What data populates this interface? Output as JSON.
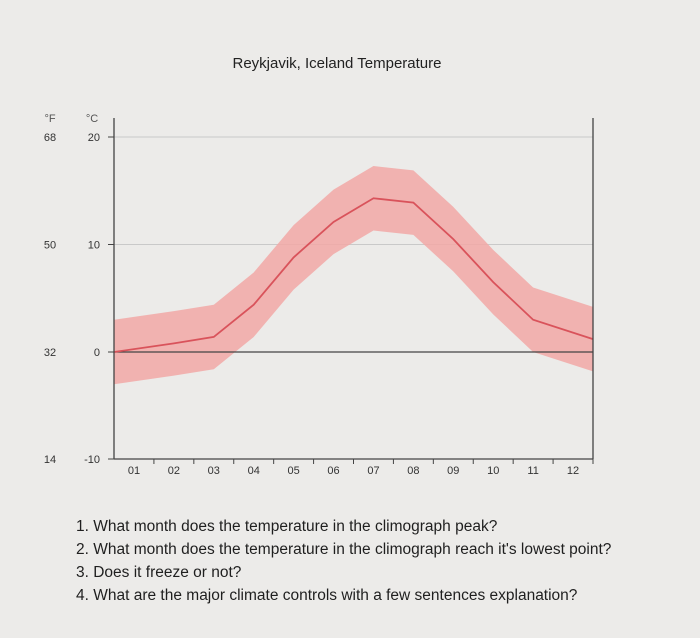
{
  "chart_data": {
    "type": "area",
    "title": "Reykjavik, Iceland Temperature",
    "y_units": {
      "fahrenheit": "°F",
      "celsius": "°C"
    },
    "y_ticks_celsius": [
      "20",
      "10",
      "0",
      "-10"
    ],
    "y_ticks_fahrenheit": [
      "68",
      "50",
      "32",
      "14"
    ],
    "ylim": [
      -10,
      21
    ],
    "categories": [
      "01",
      "02",
      "03",
      "04",
      "05",
      "06",
      "07",
      "08",
      "09",
      "10",
      "11",
      "12"
    ],
    "series": [
      {
        "values": [
          0,
          0.8,
          1.4,
          4.4,
          8.8,
          12.1,
          14.3,
          13.9,
          10.5,
          6.5,
          3.0,
          1.2
        ],
        "band_upper": [
          3,
          3.8,
          4.4,
          7.4,
          11.8,
          15.1,
          17.3,
          16.9,
          13.5,
          9.5,
          6.0,
          4.2
        ],
        "band_lower": [
          -3,
          -2.2,
          -1.6,
          1.4,
          5.8,
          9.1,
          11.3,
          10.9,
          7.5,
          3.5,
          0.0,
          -1.8
        ]
      }
    ],
    "reference_line_celsius": 0,
    "grid": true,
    "colors": {
      "line": "#d9535b",
      "band": "#f2a8a6",
      "zero_line": "#444444",
      "grid": "#c9c9c9"
    }
  },
  "questions": [
    "1. What month does the temperature in the climograph peak?",
    "2. What month does the temperature in the climograph reach it's lowest point?",
    "3. Does it freeze or not?",
    "4. What are the major climate controls with a few sentences explanation?"
  ]
}
